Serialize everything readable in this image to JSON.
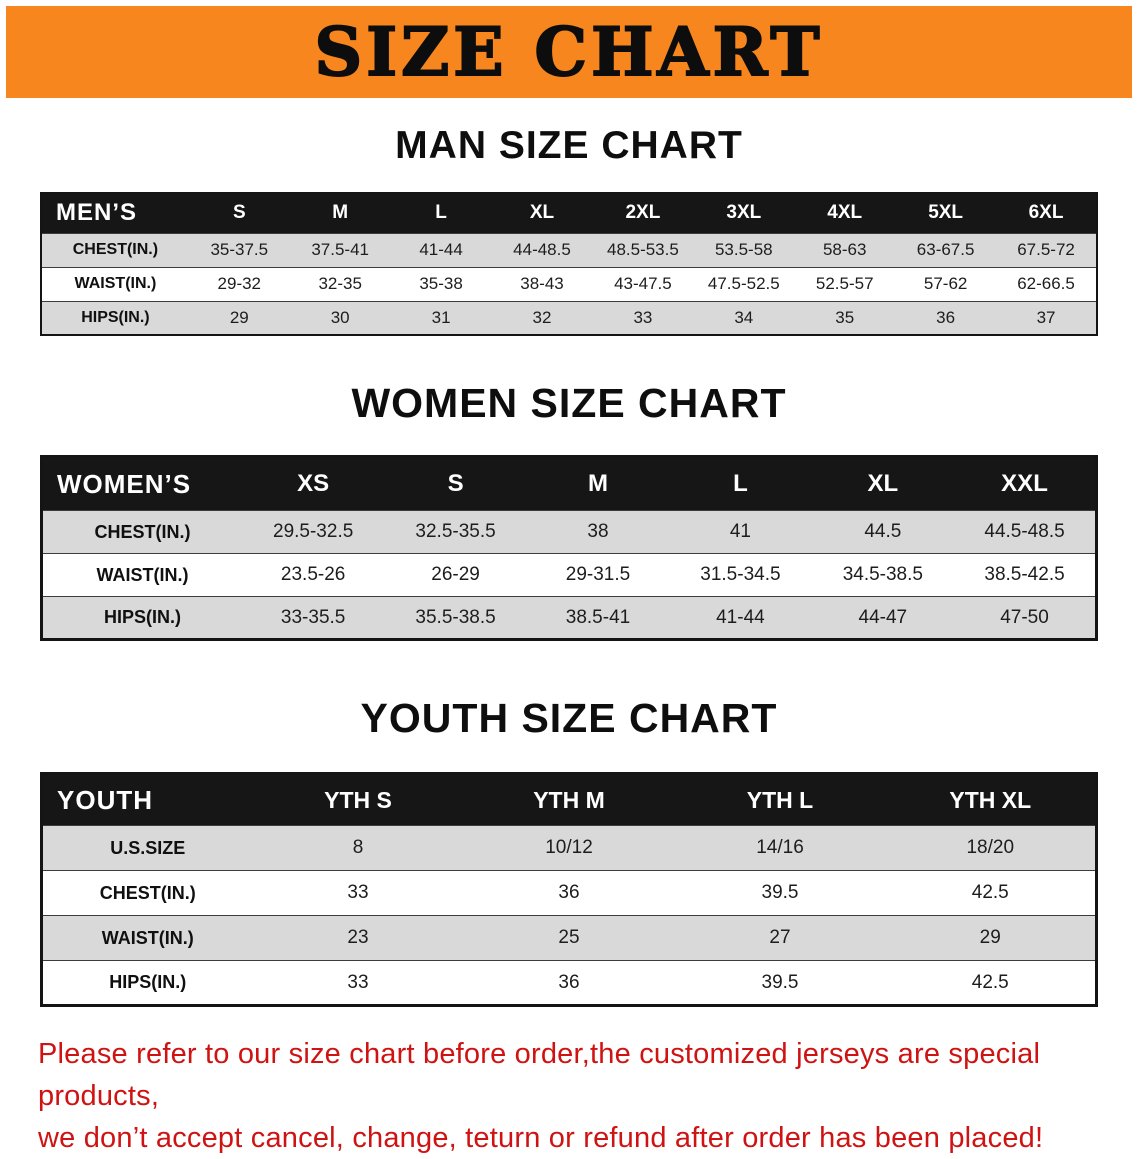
{
  "banner": {
    "title": "SIZE CHART"
  },
  "sections": [
    {
      "heading": "MAN SIZE CHART",
      "table": {
        "header": [
          "MEN’S",
          "S",
          "M",
          "L",
          "XL",
          "2XL",
          "3XL",
          "4XL",
          "5XL",
          "6XL"
        ],
        "rows": [
          [
            "CHEST(IN.)",
            "35-37.5",
            "37.5-41",
            "41-44",
            "44-48.5",
            "48.5-53.5",
            "53.5-58",
            "58-63",
            "63-67.5",
            "67.5-72"
          ],
          [
            "WAIST(IN.)",
            "29-32",
            "32-35",
            "35-38",
            "38-43",
            "43-47.5",
            "47.5-52.5",
            "52.5-57",
            "57-62",
            "62-66.5"
          ],
          [
            "HIPS(IN.)",
            "29",
            "30",
            "31",
            "32",
            "33",
            "34",
            "35",
            "36",
            "37"
          ]
        ]
      }
    },
    {
      "heading": "WOMEN SIZE CHART",
      "table": {
        "header": [
          "WOMEN’S",
          "XS",
          "S",
          "M",
          "L",
          "XL",
          "XXL"
        ],
        "rows": [
          [
            "CHEST(IN.)",
            "29.5-32.5",
            "32.5-35.5",
            "38",
            "41",
            "44.5",
            "44.5-48.5"
          ],
          [
            "WAIST(IN.)",
            "23.5-26",
            "26-29",
            "29-31.5",
            "31.5-34.5",
            "34.5-38.5",
            "38.5-42.5"
          ],
          [
            "HIPS(IN.)",
            "33-35.5",
            "35.5-38.5",
            "38.5-41",
            "41-44",
            "44-47",
            "47-50"
          ]
        ]
      }
    },
    {
      "heading": "YOUTH SIZE CHART",
      "table": {
        "header": [
          "YOUTH",
          "YTH S",
          "YTH M",
          "YTH L",
          "YTH XL"
        ],
        "rows": [
          [
            "U.S.SIZE",
            "8",
            "10/12",
            "14/16",
            "18/20"
          ],
          [
            "CHEST(IN.)",
            "33",
            "36",
            "39.5",
            "42.5"
          ],
          [
            "WAIST(IN.)",
            "23",
            "25",
            "27",
            "29"
          ],
          [
            "HIPS(IN.)",
            "33",
            "36",
            "39.5",
            "42.5"
          ]
        ]
      }
    }
  ],
  "footer": {
    "line1": "Please refer to our size chart before order,the customized jerseys are special products,",
    "line2": "we don’t accept cancel, change, teturn or refund after order has been placed!"
  },
  "colors": {
    "banner-bg": "#f6861d",
    "table-header-bg": "#161616",
    "row-stripe": "#d9d9d9",
    "footer-text": "#cf1312"
  }
}
